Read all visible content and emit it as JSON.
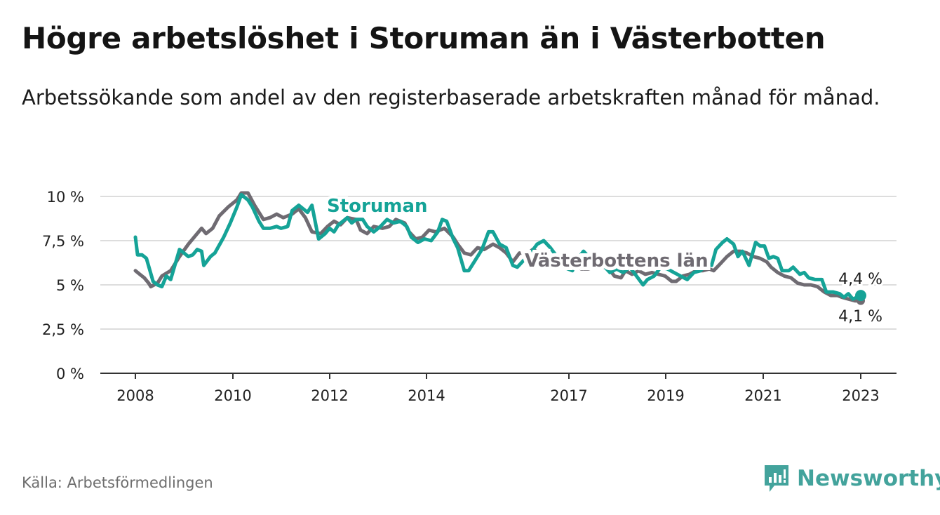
{
  "title": "Högre arbetslöshet i Storuman än i Västerbotten",
  "subtitle": "Arbetssökande som andel av den registerbaserade arbetskraften månad för månad.",
  "source": "Källa: Arbetsförmedlingen",
  "brand": "Newsworthy",
  "colors": {
    "storuman": "#15a397",
    "vasterbotten": "#6f6b72",
    "grid": "#dddddd",
    "axis": "#333333",
    "brand": "#43a39c"
  },
  "chart_data": {
    "type": "line",
    "title": "Högre arbetslöshet i Storuman än i Västerbotten",
    "xlabel": "",
    "ylabel": "",
    "xlim": [
      2008,
      2023.5
    ],
    "ylim": [
      0,
      10
    ],
    "y_ticks": [
      0,
      2.5,
      5,
      7.5,
      10
    ],
    "y_tick_labels": [
      "0 %",
      "2,5 %",
      "5 %",
      "7,5 %",
      "10 %"
    ],
    "x_ticks": [
      2008,
      2010,
      2012,
      2014,
      2017,
      2019,
      2021,
      2023
    ],
    "x_tick_labels": [
      "2008",
      "2010",
      "2012",
      "2014",
      "2017",
      "2019",
      "2021",
      "2023"
    ],
    "grid": true,
    "end_labels": {
      "storuman": "4,4 %",
      "vasterbotten": "4,1 %"
    },
    "series": [
      {
        "name": "Västerbottens län",
        "key": "vasterbotten",
        "points": [
          [
            2008.0,
            5.8
          ],
          [
            2008.1,
            5.6
          ],
          [
            2008.2,
            5.4
          ],
          [
            2008.3,
            5.1
          ],
          [
            2008.35,
            4.9
          ],
          [
            2008.5,
            5.1
          ],
          [
            2008.6,
            5.5
          ],
          [
            2008.8,
            5.8
          ],
          [
            2009.0,
            6.6
          ],
          [
            2009.2,
            7.3
          ],
          [
            2009.4,
            7.9
          ],
          [
            2009.5,
            8.2
          ],
          [
            2009.6,
            7.9
          ],
          [
            2009.75,
            8.2
          ],
          [
            2009.9,
            8.9
          ],
          [
            2010.1,
            9.4
          ],
          [
            2010.3,
            9.8
          ],
          [
            2010.4,
            10.2
          ],
          [
            2010.55,
            10.2
          ],
          [
            2010.7,
            9.5
          ],
          [
            2010.9,
            8.7
          ],
          [
            2011.05,
            8.8
          ],
          [
            2011.2,
            9.0
          ],
          [
            2011.35,
            8.8
          ],
          [
            2011.55,
            9.0
          ],
          [
            2011.7,
            9.3
          ],
          [
            2011.85,
            8.8
          ],
          [
            2012.0,
            8.0
          ],
          [
            2012.2,
            7.9
          ],
          [
            2012.35,
            8.3
          ],
          [
            2012.5,
            8.6
          ],
          [
            2012.65,
            8.4
          ],
          [
            2012.8,
            8.8
          ],
          [
            2013.0,
            8.7
          ],
          [
            2013.1,
            8.1
          ],
          [
            2013.25,
            7.9
          ],
          [
            2013.4,
            8.3
          ],
          [
            2013.6,
            8.2
          ],
          [
            2013.75,
            8.3
          ],
          [
            2013.9,
            8.7
          ],
          [
            2014.1,
            8.5
          ],
          [
            2014.2,
            8.0
          ],
          [
            2014.35,
            7.6
          ],
          [
            2014.5,
            7.7
          ],
          [
            2014.65,
            8.1
          ],
          [
            2014.8,
            8.0
          ],
          [
            2015.0,
            8.2
          ],
          [
            2015.2,
            7.7
          ],
          [
            2015.3,
            7.3
          ],
          [
            2015.45,
            6.8
          ],
          [
            2015.6,
            6.7
          ],
          [
            2015.75,
            7.1
          ],
          [
            2015.9,
            7.0
          ],
          [
            2016.1,
            7.3
          ],
          [
            2016.25,
            7.1
          ],
          [
            2016.4,
            6.8
          ],
          [
            2016.55,
            6.3
          ],
          [
            2016.7,
            6.8
          ],
          [
            2016.9,
            6.8
          ],
          [
            2017.0,
            7.0
          ],
          [
            2017.15,
            6.8
          ],
          [
            2017.3,
            6.3
          ],
          [
            2017.45,
            6.1
          ],
          [
            2017.6,
            6.3
          ],
          [
            2017.8,
            6.4
          ],
          [
            2017.95,
            6.2
          ],
          [
            2018.1,
            5.9
          ],
          [
            2018.25,
            5.9
          ],
          [
            2018.4,
            6.0
          ],
          [
            2018.55,
            6.0
          ],
          [
            2018.7,
            6.0
          ],
          [
            2018.85,
            5.5
          ],
          [
            2019.0,
            5.4
          ],
          [
            2019.1,
            5.8
          ],
          [
            2019.25,
            5.6
          ],
          [
            2019.4,
            5.8
          ],
          [
            2019.55,
            5.6
          ],
          [
            2019.7,
            5.7
          ],
          [
            2019.85,
            5.6
          ],
          [
            2020.0,
            5.5
          ],
          [
            2020.15,
            5.2
          ],
          [
            2020.25,
            5.2
          ],
          [
            2020.4,
            5.5
          ],
          [
            2020.55,
            5.6
          ],
          [
            2020.7,
            5.8
          ],
          [
            2020.85,
            5.8
          ],
          [
            2021.0,
            5.9
          ],
          [
            2021.1,
            5.8
          ],
          [
            2021.25,
            6.2
          ],
          [
            2021.4,
            6.6
          ],
          [
            2021.55,
            6.9
          ],
          [
            2021.7,
            6.9
          ],
          [
            2021.85,
            6.8
          ],
          [
            2022.0,
            6.6
          ],
          [
            2022.15,
            6.5
          ],
          [
            2022.3,
            6.3
          ],
          [
            2022.4,
            6.0
          ],
          [
            2022.55,
            5.7
          ],
          [
            2022.7,
            5.5
          ],
          [
            2022.85,
            5.4
          ],
          [
            2023.0,
            5.1
          ],
          [
            2023.15,
            5.0
          ],
          [
            2023.3,
            5.0
          ],
          [
            2023.45,
            4.9
          ],
          [
            2023.6,
            4.6
          ],
          [
            2023.75,
            4.4
          ],
          [
            2023.9,
            4.4
          ],
          [
            2024.0,
            4.3
          ],
          [
            2024.15,
            4.2
          ],
          [
            2024.3,
            4.1
          ],
          [
            2024.43,
            4.1
          ]
        ]
      },
      {
        "name": "Storuman",
        "key": "storuman",
        "points": [
          [
            2008.0,
            7.7
          ],
          [
            2008.05,
            6.7
          ],
          [
            2008.15,
            6.7
          ],
          [
            2008.25,
            6.5
          ],
          [
            2008.4,
            5.2
          ],
          [
            2008.5,
            5.0
          ],
          [
            2008.6,
            4.9
          ],
          [
            2008.7,
            5.5
          ],
          [
            2008.8,
            5.3
          ],
          [
            2009.0,
            7.0
          ],
          [
            2009.1,
            6.8
          ],
          [
            2009.2,
            6.6
          ],
          [
            2009.3,
            6.7
          ],
          [
            2009.4,
            7.0
          ],
          [
            2009.5,
            6.9
          ],
          [
            2009.55,
            6.1
          ],
          [
            2009.7,
            6.6
          ],
          [
            2009.8,
            6.8
          ],
          [
            2010.0,
            7.7
          ],
          [
            2010.15,
            8.5
          ],
          [
            2010.3,
            9.4
          ],
          [
            2010.4,
            10.1
          ],
          [
            2010.55,
            9.8
          ],
          [
            2010.65,
            9.4
          ],
          [
            2010.8,
            8.6
          ],
          [
            2010.9,
            8.2
          ],
          [
            2011.05,
            8.2
          ],
          [
            2011.2,
            8.3
          ],
          [
            2011.3,
            8.2
          ],
          [
            2011.45,
            8.3
          ],
          [
            2011.55,
            9.2
          ],
          [
            2011.7,
            9.5
          ],
          [
            2011.8,
            9.3
          ],
          [
            2011.9,
            9.1
          ],
          [
            2012.0,
            9.5
          ],
          [
            2012.15,
            7.6
          ],
          [
            2012.3,
            7.9
          ],
          [
            2012.4,
            8.2
          ],
          [
            2012.5,
            8.0
          ],
          [
            2012.6,
            8.4
          ],
          [
            2012.7,
            8.6
          ],
          [
            2012.8,
            8.8
          ],
          [
            2012.9,
            8.5
          ],
          [
            2013.0,
            8.7
          ],
          [
            2013.15,
            8.7
          ],
          [
            2013.25,
            8.3
          ],
          [
            2013.4,
            8.0
          ],
          [
            2013.55,
            8.3
          ],
          [
            2013.7,
            8.7
          ],
          [
            2013.85,
            8.5
          ],
          [
            2014.0,
            8.6
          ],
          [
            2014.15,
            8.3
          ],
          [
            2014.25,
            7.7
          ],
          [
            2014.4,
            7.4
          ],
          [
            2014.55,
            7.6
          ],
          [
            2014.7,
            7.5
          ],
          [
            2014.85,
            8.0
          ],
          [
            2014.95,
            8.7
          ],
          [
            2015.05,
            8.6
          ],
          [
            2015.2,
            7.6
          ],
          [
            2015.3,
            7.1
          ],
          [
            2015.45,
            5.8
          ],
          [
            2015.55,
            5.8
          ],
          [
            2015.7,
            6.4
          ],
          [
            2015.85,
            7.0
          ],
          [
            2016.0,
            8.0
          ],
          [
            2016.1,
            8.0
          ],
          [
            2016.25,
            7.3
          ],
          [
            2016.4,
            7.1
          ],
          [
            2016.55,
            6.1
          ],
          [
            2016.65,
            6.0
          ],
          [
            2016.8,
            6.4
          ],
          [
            2016.95,
            6.8
          ],
          [
            2017.1,
            7.3
          ],
          [
            2017.25,
            7.5
          ],
          [
            2017.4,
            7.1
          ],
          [
            2017.55,
            6.6
          ],
          [
            2017.7,
            6.0
          ],
          [
            2017.9,
            5.8
          ],
          [
            2018.0,
            6.4
          ],
          [
            2018.15,
            6.9
          ],
          [
            2018.3,
            6.5
          ],
          [
            2018.45,
            6.1
          ],
          [
            2018.6,
            6.1
          ],
          [
            2018.75,
            5.7
          ],
          [
            2018.9,
            5.9
          ],
          [
            2019.05,
            5.7
          ],
          [
            2019.2,
            6.0
          ],
          [
            2019.35,
            5.5
          ],
          [
            2019.5,
            5.0
          ],
          [
            2019.6,
            5.3
          ],
          [
            2019.75,
            5.5
          ],
          [
            2019.9,
            6.0
          ],
          [
            2020.05,
            5.9
          ],
          [
            2020.2,
            5.7
          ],
          [
            2020.35,
            5.5
          ],
          [
            2020.5,
            5.3
          ],
          [
            2020.65,
            5.7
          ],
          [
            2020.8,
            5.8
          ],
          [
            2020.95,
            6.2
          ],
          [
            2021.05,
            6.1
          ],
          [
            2021.15,
            7.0
          ],
          [
            2021.3,
            7.4
          ],
          [
            2021.4,
            7.6
          ],
          [
            2021.55,
            7.3
          ],
          [
            2021.65,
            6.6
          ],
          [
            2021.75,
            6.9
          ],
          [
            2021.9,
            6.1
          ],
          [
            2022.05,
            7.4
          ],
          [
            2022.15,
            7.2
          ],
          [
            2022.25,
            7.2
          ],
          [
            2022.35,
            6.5
          ],
          [
            2022.45,
            6.6
          ],
          [
            2022.55,
            6.5
          ],
          [
            2022.65,
            5.8
          ],
          [
            2022.8,
            5.8
          ],
          [
            2022.9,
            6.0
          ],
          [
            2023.05,
            5.6
          ],
          [
            2023.15,
            5.7
          ],
          [
            2023.25,
            5.4
          ],
          [
            2023.4,
            5.3
          ],
          [
            2023.55,
            5.3
          ],
          [
            2023.65,
            4.6
          ],
          [
            2023.8,
            4.6
          ],
          [
            2023.95,
            4.5
          ],
          [
            2024.05,
            4.3
          ],
          [
            2024.15,
            4.5
          ],
          [
            2024.25,
            4.2
          ],
          [
            2024.35,
            4.3
          ],
          [
            2024.43,
            4.4
          ]
        ]
      }
    ]
  }
}
